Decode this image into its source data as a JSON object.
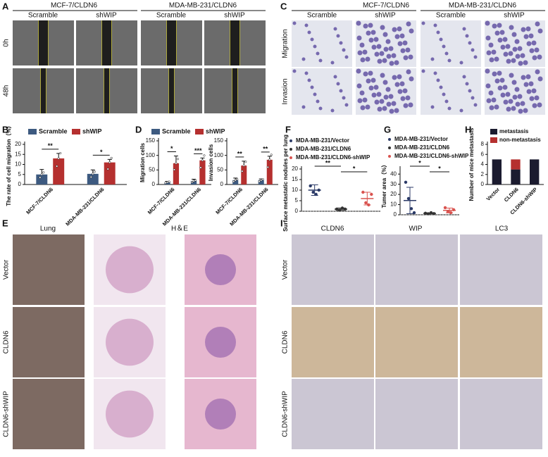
{
  "panel_labels": [
    "A",
    "B",
    "C",
    "D",
    "E",
    "F",
    "G",
    "H",
    "I"
  ],
  "panel_a": {
    "groups": [
      "MCF-7/CLDN6",
      "MDA-MB-231/CLDN6"
    ],
    "columns": [
      "Scramble",
      "shWIP",
      "Scramble",
      "shWIP"
    ],
    "rows": [
      "0h",
      "48h"
    ]
  },
  "panel_c": {
    "groups": [
      "MCF-7/CLDN6",
      "MDA-MB-231/CLDN6"
    ],
    "columns": [
      "Scramble",
      "shWIP",
      "Scramble",
      "shWIP"
    ],
    "rows": [
      "Migration",
      "Invasion"
    ]
  },
  "panel_e": {
    "columns": [
      "Lung",
      "H＆E"
    ],
    "rows": [
      "Vector",
      "CLDN6",
      "CLDN6-shWIP"
    ]
  },
  "panel_i": {
    "columns": [
      "CLDN6",
      "WIP",
      "LC3"
    ],
    "rows": [
      "Vector",
      "CLDN6",
      "CLDN6-shWIP"
    ]
  },
  "chart_data": [
    {
      "type": "bar",
      "ylabel": "The rate of cell migration（%）",
      "categories": [
        "MCF-7/CLDN6",
        "MDA-MB-231/CLDN6"
      ],
      "series": [
        {
          "name": "Scramble",
          "color": "#3d5a80",
          "values": [
            5,
            5.3
          ],
          "errors": [
            2.5,
            2
          ]
        },
        {
          "name": "shWIP",
          "color": "#b5302f",
          "values": [
            13,
            11
          ],
          "errors": [
            2.5,
            1.5
          ]
        }
      ],
      "significance": [
        "**",
        "*"
      ],
      "ylim": [
        0,
        20
      ],
      "yticks": [
        0,
        5,
        10,
        15,
        20
      ]
    },
    {
      "type": "bar",
      "ylabel": "Migration cells",
      "categories": [
        "MCF-7/CLDN6",
        "MDA-MB-231/CLDN6"
      ],
      "series": [
        {
          "name": "Scramble",
          "color": "#3d5a80",
          "values": [
            8,
            12
          ],
          "errors": [
            3,
            6
          ]
        },
        {
          "name": "shWIP",
          "color": "#b5302f",
          "values": [
            73,
            83
          ],
          "errors": [
            25,
            8
          ]
        }
      ],
      "significance": [
        "*",
        "***"
      ],
      "ylim": [
        0,
        150
      ],
      "yticks": [
        0,
        50,
        100,
        150
      ]
    },
    {
      "type": "bar",
      "ylabel": "Invasion cells",
      "categories": [
        "MCF-7/CLDN6",
        "MDA-MB-231/CLDN6"
      ],
      "series": [
        {
          "name": "Scramble",
          "color": "#3d5a80",
          "values": [
            15,
            15
          ],
          "errors": [
            7,
            4
          ]
        },
        {
          "name": "shWIP",
          "color": "#b5302f",
          "values": [
            65,
            85
          ],
          "errors": [
            15,
            12
          ]
        }
      ],
      "significance": [
        "**",
        "**"
      ],
      "ylim": [
        0,
        150
      ],
      "yticks": [
        0,
        50,
        100,
        150
      ]
    },
    {
      "type": "dot",
      "ylabel": "Surface metastatic nodules per lung",
      "series": [
        {
          "name": "MDA-MB-231/Vector",
          "color": "#2b3a67",
          "values": [
            10
          ],
          "errors": [
            2.5
          ],
          "points": [
            12,
            9,
            8,
            10
          ]
        },
        {
          "name": "MDA-MB-231/CLDN6",
          "color": "#333333",
          "values": [
            1
          ],
          "errors": [
            0.6
          ],
          "points": [
            1,
            0.5,
            1.5,
            1
          ]
        },
        {
          "name": "MDA-MB-231/CLDN6-shWIP",
          "color": "#d9534f",
          "values": [
            6
          ],
          "errors": [
            3
          ],
          "points": [
            9,
            4,
            3,
            8
          ]
        }
      ],
      "significance": [
        "**",
        "*"
      ],
      "ylim": [
        0,
        20
      ],
      "yticks": [
        0,
        5,
        10,
        15,
        20
      ]
    },
    {
      "type": "dot",
      "ylabel": "Tumer area（%）",
      "series": [
        {
          "name": "MDA-MB-231/Vector",
          "color": "#2b3a67",
          "values": [
            14
          ],
          "errors": [
            13
          ],
          "points": [
            32,
            16,
            6,
            2
          ]
        },
        {
          "name": "MDA-MB-231/CLDN6",
          "color": "#333333",
          "values": [
            1.4
          ],
          "errors": [
            0.5
          ],
          "points": [
            1.5,
            1,
            2,
            1.2
          ]
        },
        {
          "name": "MDA-MB-231/CLDN6-shWIP",
          "color": "#d9534f",
          "values": [
            4.3
          ],
          "errors": [
            2.3
          ],
          "points": [
            7,
            3,
            2,
            5
          ]
        }
      ],
      "significance": [
        "*",
        "*"
      ],
      "ylim": [
        0,
        45
      ],
      "yticks": [
        0,
        10,
        20,
        30,
        40
      ]
    },
    {
      "type": "stacked",
      "ylabel": "Number of mice metastasis",
      "categories": [
        "Vector",
        "CLDN6",
        "CLDN6-shWIP"
      ],
      "series": [
        {
          "name": "metastasis",
          "color": "#1b1b2f",
          "values": [
            5,
            3,
            5
          ]
        },
        {
          "name": "non-metastasis",
          "color": "#b5302f",
          "values": [
            0,
            2,
            0
          ]
        }
      ],
      "ylim": [
        0,
        8
      ],
      "yticks": [
        0,
        2,
        4,
        6,
        8
      ]
    }
  ]
}
